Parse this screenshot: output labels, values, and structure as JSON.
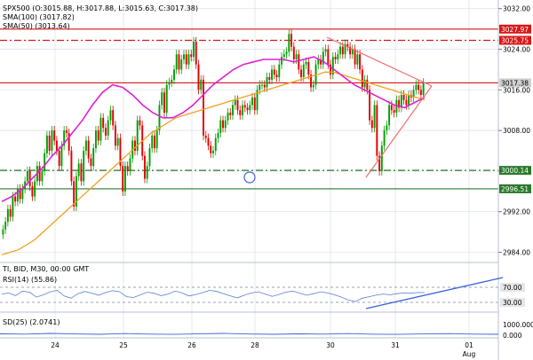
{
  "colors": {
    "background": "#ffffff",
    "grid": "#d9dfe7",
    "up_candle": "#00a000",
    "down_candle": "#e00000",
    "sma50": "#f0a020",
    "sma100": "#e020d0",
    "red_line": "#d81818",
    "green_line": "#2a7a2a",
    "triangle": "#e87070",
    "rsi_line": "#5a7fd8",
    "rsi_trend": "#3a62d6",
    "sd_line": "#3a62d6",
    "current_tag": "#d0d0d0",
    "marker": "#3a62d6"
  },
  "legend": {
    "ohlc": "SPX500 (O:3015.88, H:3017.88, L:3015.63, C:3017.38)",
    "sma100": "SMA(100) (3017.82)",
    "sma50": "SMA(50) (3013.64)"
  },
  "rsi_panel": {
    "header": "TI, BID, M30, 00:00 GMT",
    "label": "RSI(14) (55.86)",
    "ticks": [
      "70.00",
      "30.00"
    ]
  },
  "sd_panel": {
    "label": "SD(25) (2.0741)",
    "ticks": [
      "1000.000",
      "0.000"
    ]
  },
  "chart_data": {
    "type": "candlestick",
    "symbol": "SPX500",
    "timeframe": "M30",
    "ylim": [
      2982,
      3033
    ],
    "y_ticks": [
      "2984.00",
      "2992.00",
      "3000.00",
      "3008.00",
      "3016.00",
      "3024.00",
      "3032.00"
    ],
    "x_ticks": [
      "24",
      "25",
      "26",
      "28",
      "30",
      "31",
      "01"
    ],
    "x_tick_sub": "Aug",
    "horizontal_levels": [
      {
        "value": 3027.97,
        "label": "3027.97",
        "style": "solid",
        "color": "#d81818"
      },
      {
        "value": 3025.75,
        "label": "3025.75",
        "style": "dashdot",
        "color": "#d81818"
      },
      {
        "value": 3017.38,
        "label": "3017.38",
        "style": "solid",
        "color": "#d81818",
        "current": true
      },
      {
        "value": 3000.14,
        "label": "3000.14",
        "style": "dashdot",
        "color": "#2a7a2a"
      },
      {
        "value": 2996.51,
        "label": "2996.51",
        "style": "solid",
        "color": "#2a7a2a"
      }
    ],
    "candles_close": [
      2988.5,
      2990,
      2992.5,
      2991,
      2995,
      2994,
      2996.5,
      2994.5,
      2996.5,
      2998,
      3000,
      2997,
      2995,
      2998,
      3001,
      2998,
      3000,
      3003.5,
      3007,
      3004,
      3008,
      3006,
      3004,
      3001,
      3005,
      3008,
      3007.5,
      3004,
      2998,
      2993,
      2999,
      3001.5,
      2998,
      3004,
      3006,
      3002.5,
      3001,
      3004.5,
      3008,
      3006,
      3010.5,
      3008.5,
      3007,
      3010,
      3012,
      3009,
      3005,
      3006.5,
      3001,
      2996,
      3001,
      3000,
      3002.5,
      3006,
      3004,
      3010,
      3009,
      3003,
      2998.5,
      3001,
      3004.5,
      3007,
      3004.5,
      3008,
      3013,
      3015.5,
      3011.5,
      3017,
      3017.5,
      3018,
      3020,
      3023,
      3020,
      3022,
      3023,
      3021,
      3023,
      3022.5,
      3025.5,
      3021,
      3016,
      3018,
      3007,
      3006.5,
      3005,
      3003.5,
      3004,
      3006.5,
      3007.5,
      3010,
      3008.5,
      3010,
      3011.5,
      3011,
      3013,
      3014,
      3012,
      3011,
      3013,
      3012.5,
      3012,
      3013,
      3014.5,
      3012,
      3016,
      3017,
      3017,
      3016.5,
      3018.5,
      3018,
      3020,
      3019,
      3018.5,
      3021,
      3022.5,
      3023,
      3023.5,
      3027,
      3024.5,
      3022,
      3023,
      3020,
      3018.5,
      3021,
      3021.5,
      3019,
      3016.5,
      3017,
      3021,
      3022,
      3021,
      3023.5,
      3024,
      3021,
      3019,
      3022.5,
      3022,
      3023,
      3024.5,
      3023,
      3025,
      3024.5,
      3023,
      3024,
      3021,
      3023,
      3020,
      3016.5,
      3018,
      3016,
      3010,
      3008.5,
      3013,
      3003,
      3000,
      3005,
      3008,
      3009,
      3013,
      3012,
      3011.5,
      3014,
      3012.5,
      3015,
      3014,
      3013,
      3015,
      3014.5,
      3016,
      3017,
      3016,
      3015,
      3017.38
    ],
    "sma50": [
      2983.5,
      2984,
      2984.5,
      2985.5,
      2986.5,
      2988,
      2989.5,
      2991,
      2992.5,
      2994,
      2995.5,
      2997,
      2998.5,
      3000,
      3001.5,
      3003,
      3004.5,
      3006,
      3007.5,
      3008.5,
      3009.5,
      3010.5,
      3011,
      3011.5,
      3012,
      3012.5,
      3013,
      3013.5,
      3014,
      3014.5,
      3015,
      3015.5,
      3016,
      3016.5,
      3017,
      3017.5,
      3018,
      3018.5,
      3019,
      3019.5,
      3019.5,
      3019,
      3018.5,
      3018,
      3017.5,
      3017,
      3016.5,
      3016,
      3015.5,
      3015,
      3014.5,
      3014
    ],
    "sma100": [
      2994,
      2995,
      2996.5,
      2998.5,
      3000.5,
      3003,
      3005,
      3007.5,
      3010,
      3013,
      3015.5,
      3017,
      3016.5,
      3015,
      3013,
      3011.5,
      3010.5,
      3010.5,
      3011.5,
      3013,
      3015,
      3017,
      3018.5,
      3020,
      3021,
      3021.5,
      3022,
      3022,
      3022,
      3021.5,
      3022,
      3022.5,
      3021.5,
      3020,
      3018.5,
      3017,
      3016,
      3015,
      3014,
      3013,
      3012.5,
      3013.5,
      3014.5
    ],
    "rsi": [
      52,
      55,
      48,
      60,
      57,
      44,
      50,
      58,
      62,
      47,
      41,
      53,
      59,
      54,
      49,
      56,
      61,
      58,
      45,
      43,
      50,
      57,
      54,
      48,
      52,
      60,
      55,
      47,
      51,
      56,
      62,
      59,
      53,
      47,
      42,
      49,
      55,
      58,
      52,
      46,
      51,
      57,
      60,
      54,
      49,
      53,
      58,
      55,
      50,
      44,
      36,
      32,
      41,
      45,
      49,
      52,
      50,
      53,
      55,
      54,
      56,
      55.86
    ],
    "sd": [
      0.15,
      0.12,
      0.2,
      0.14,
      0.1,
      0.18,
      0.12,
      0.09,
      0.16,
      0.2,
      0.13,
      0.1,
      0.15,
      0.12,
      0.18,
      0.11,
      0.09,
      0.14,
      0.17,
      0.12,
      0.1
    ]
  }
}
